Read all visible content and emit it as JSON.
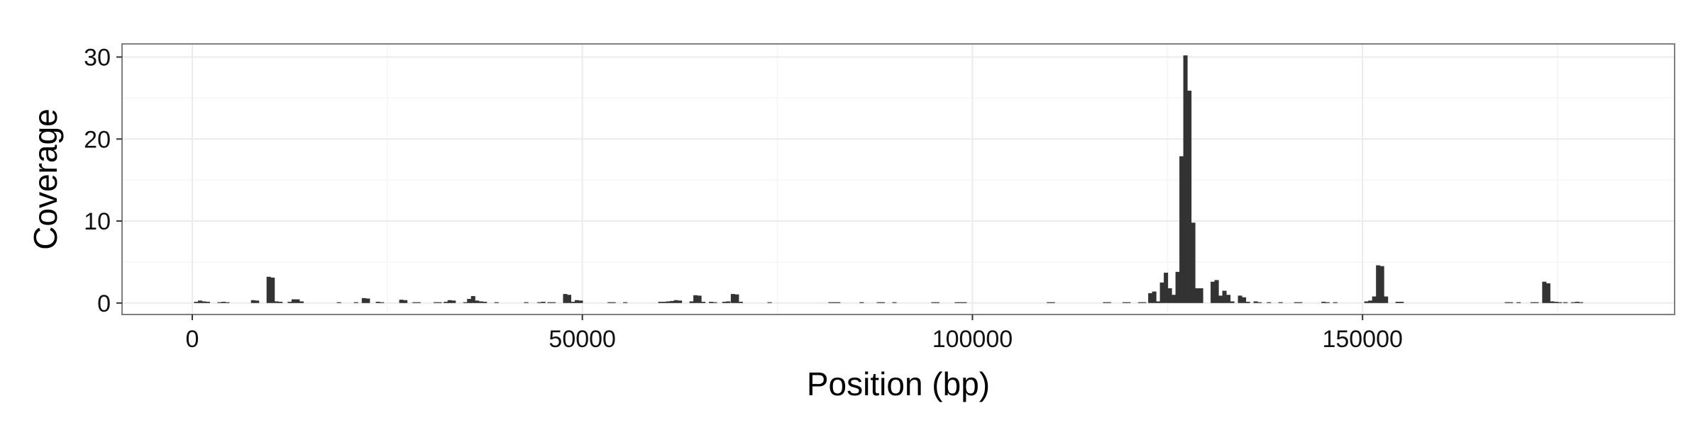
{
  "chart_data": {
    "type": "bar",
    "title": "",
    "xlabel": "Position (bp)",
    "ylabel": "Coverage",
    "xlim": [
      -9000,
      190000
    ],
    "ylim": [
      -1.4,
      31.6
    ],
    "x_ticks": [
      0,
      50000,
      100000,
      150000
    ],
    "x_tick_labels": [
      "0",
      "50000",
      "100000",
      "150000"
    ],
    "y_ticks": [
      0,
      10,
      20,
      30
    ],
    "y_tick_labels": [
      "0",
      "10",
      "20",
      "30"
    ],
    "grid": true,
    "legend": "none",
    "bar_color": "#333333",
    "bin_width": 500,
    "bars": [
      {
        "x": 500,
        "y": 0.15
      },
      {
        "x": 1000,
        "y": 0.3
      },
      {
        "x": 1500,
        "y": 0.2
      },
      {
        "x": 2000,
        "y": 0.15
      },
      {
        "x": 3500,
        "y": 0.1
      },
      {
        "x": 4000,
        "y": 0.15
      },
      {
        "x": 4500,
        "y": 0.1
      },
      {
        "x": 7800,
        "y": 0.35
      },
      {
        "x": 8300,
        "y": 0.3
      },
      {
        "x": 9800,
        "y": 3.2
      },
      {
        "x": 10300,
        "y": 3.1
      },
      {
        "x": 10800,
        "y": 0.2
      },
      {
        "x": 11300,
        "y": 0.15
      },
      {
        "x": 12500,
        "y": 0.15
      },
      {
        "x": 13000,
        "y": 0.45
      },
      {
        "x": 13500,
        "y": 0.45
      },
      {
        "x": 14000,
        "y": 0.2
      },
      {
        "x": 18800,
        "y": 0.1
      },
      {
        "x": 21000,
        "y": 0.1
      },
      {
        "x": 22000,
        "y": 0.6
      },
      {
        "x": 22500,
        "y": 0.55
      },
      {
        "x": 23800,
        "y": 0.15
      },
      {
        "x": 24300,
        "y": 0.1
      },
      {
        "x": 26800,
        "y": 0.4
      },
      {
        "x": 27300,
        "y": 0.35
      },
      {
        "x": 28500,
        "y": 0.1
      },
      {
        "x": 29000,
        "y": 0.1
      },
      {
        "x": 31200,
        "y": 0.1
      },
      {
        "x": 31700,
        "y": 0.1
      },
      {
        "x": 32500,
        "y": 0.15
      },
      {
        "x": 33000,
        "y": 0.35
      },
      {
        "x": 33500,
        "y": 0.3
      },
      {
        "x": 35000,
        "y": 0.1
      },
      {
        "x": 35500,
        "y": 0.5
      },
      {
        "x": 36000,
        "y": 0.85
      },
      {
        "x": 36500,
        "y": 0.3
      },
      {
        "x": 37000,
        "y": 0.2
      },
      {
        "x": 37500,
        "y": 0.15
      },
      {
        "x": 39000,
        "y": 0.1
      },
      {
        "x": 42800,
        "y": 0.1
      },
      {
        "x": 44500,
        "y": 0.1
      },
      {
        "x": 45000,
        "y": 0.15
      },
      {
        "x": 45800,
        "y": 0.1
      },
      {
        "x": 46300,
        "y": 0.1
      },
      {
        "x": 47800,
        "y": 1.1
      },
      {
        "x": 48300,
        "y": 1.0
      },
      {
        "x": 48800,
        "y": 0.15
      },
      {
        "x": 49300,
        "y": 0.35
      },
      {
        "x": 49800,
        "y": 0.3
      },
      {
        "x": 53500,
        "y": 0.1
      },
      {
        "x": 54000,
        "y": 0.1
      },
      {
        "x": 55500,
        "y": 0.1
      },
      {
        "x": 60000,
        "y": 0.15
      },
      {
        "x": 60500,
        "y": 0.15
      },
      {
        "x": 61000,
        "y": 0.2
      },
      {
        "x": 61500,
        "y": 0.25
      },
      {
        "x": 62000,
        "y": 0.35
      },
      {
        "x": 62500,
        "y": 0.3
      },
      {
        "x": 64000,
        "y": 0.2
      },
      {
        "x": 64500,
        "y": 0.95
      },
      {
        "x": 65000,
        "y": 0.9
      },
      {
        "x": 65500,
        "y": 0.15
      },
      {
        "x": 66500,
        "y": 0.15
      },
      {
        "x": 67000,
        "y": 0.1
      },
      {
        "x": 68200,
        "y": 0.15
      },
      {
        "x": 68700,
        "y": 0.2
      },
      {
        "x": 69300,
        "y": 1.1
      },
      {
        "x": 69800,
        "y": 1.05
      },
      {
        "x": 70300,
        "y": 0.15
      },
      {
        "x": 74000,
        "y": 0.1
      },
      {
        "x": 81800,
        "y": 0.1
      },
      {
        "x": 82300,
        "y": 0.1
      },
      {
        "x": 82800,
        "y": 0.1
      },
      {
        "x": 85800,
        "y": 0.1
      },
      {
        "x": 88000,
        "y": 0.1
      },
      {
        "x": 88500,
        "y": 0.1
      },
      {
        "x": 90000,
        "y": 0.1
      },
      {
        "x": 95000,
        "y": 0.1
      },
      {
        "x": 95500,
        "y": 0.1
      },
      {
        "x": 98000,
        "y": 0.1
      },
      {
        "x": 98500,
        "y": 0.1
      },
      {
        "x": 99000,
        "y": 0.1
      },
      {
        "x": 109800,
        "y": 0.1
      },
      {
        "x": 110300,
        "y": 0.1
      },
      {
        "x": 117000,
        "y": 0.1
      },
      {
        "x": 117500,
        "y": 0.1
      },
      {
        "x": 119500,
        "y": 0.1
      },
      {
        "x": 120000,
        "y": 0.1
      },
      {
        "x": 121500,
        "y": 0.1
      },
      {
        "x": 122000,
        "y": 0.1
      },
      {
        "x": 122800,
        "y": 1.2
      },
      {
        "x": 123300,
        "y": 1.4
      },
      {
        "x": 123800,
        "y": 0.2
      },
      {
        "x": 124300,
        "y": 2.5
      },
      {
        "x": 124800,
        "y": 3.7
      },
      {
        "x": 125300,
        "y": 1.8
      },
      {
        "x": 125800,
        "y": 1.0
      },
      {
        "x": 126300,
        "y": 3.8
      },
      {
        "x": 126800,
        "y": 17.9
      },
      {
        "x": 127300,
        "y": 30.2
      },
      {
        "x": 127800,
        "y": 25.9
      },
      {
        "x": 128300,
        "y": 9.8
      },
      {
        "x": 128800,
        "y": 1.8
      },
      {
        "x": 129300,
        "y": 1.8
      },
      {
        "x": 130800,
        "y": 2.6
      },
      {
        "x": 131300,
        "y": 2.8
      },
      {
        "x": 131800,
        "y": 0.9
      },
      {
        "x": 132300,
        "y": 1.5
      },
      {
        "x": 132800,
        "y": 1.0
      },
      {
        "x": 133300,
        "y": 0.2
      },
      {
        "x": 134300,
        "y": 0.9
      },
      {
        "x": 134800,
        "y": 0.7
      },
      {
        "x": 135300,
        "y": 0.15
      },
      {
        "x": 136300,
        "y": 0.2
      },
      {
        "x": 136800,
        "y": 0.1
      },
      {
        "x": 138000,
        "y": 0.1
      },
      {
        "x": 139500,
        "y": 0.1
      },
      {
        "x": 141500,
        "y": 0.1
      },
      {
        "x": 142000,
        "y": 0.1
      },
      {
        "x": 145000,
        "y": 0.15
      },
      {
        "x": 145500,
        "y": 0.1
      },
      {
        "x": 146500,
        "y": 0.1
      },
      {
        "x": 150500,
        "y": 0.2
      },
      {
        "x": 151000,
        "y": 0.3
      },
      {
        "x": 151500,
        "y": 0.8
      },
      {
        "x": 152000,
        "y": 4.6
      },
      {
        "x": 152500,
        "y": 4.5
      },
      {
        "x": 153000,
        "y": 0.8
      },
      {
        "x": 154500,
        "y": 0.15
      },
      {
        "x": 155000,
        "y": 0.15
      },
      {
        "x": 168500,
        "y": 0.1
      },
      {
        "x": 169000,
        "y": 0.1
      },
      {
        "x": 170000,
        "y": 0.1
      },
      {
        "x": 171800,
        "y": 0.1
      },
      {
        "x": 172300,
        "y": 0.1
      },
      {
        "x": 173300,
        "y": 2.6
      },
      {
        "x": 173800,
        "y": 2.4
      },
      {
        "x": 174300,
        "y": 0.2
      },
      {
        "x": 174800,
        "y": 0.15
      },
      {
        "x": 175300,
        "y": 0.1
      },
      {
        "x": 176000,
        "y": 0.1
      },
      {
        "x": 177000,
        "y": 0.1
      },
      {
        "x": 177500,
        "y": 0.15
      },
      {
        "x": 178000,
        "y": 0.1
      }
    ]
  }
}
